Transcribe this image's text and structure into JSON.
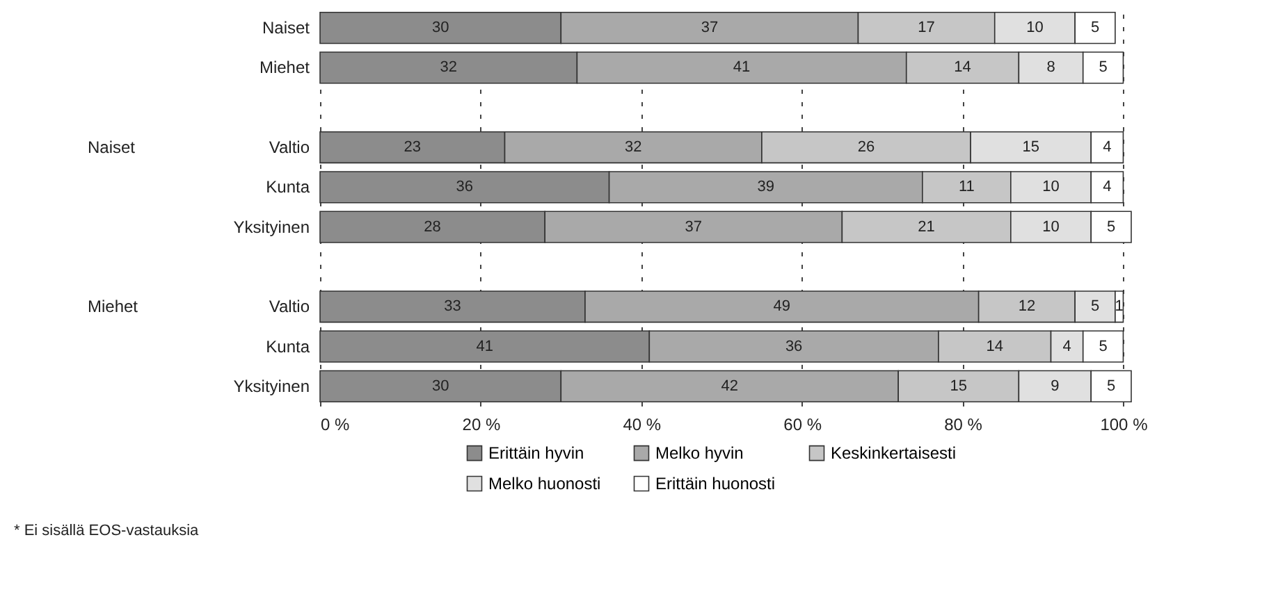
{
  "chart_data": {
    "type": "bar",
    "orientation": "horizontal",
    "stacked": true,
    "data_labels": true,
    "grid": "x",
    "legend": "bottom",
    "categories": [
      "Naiset",
      "Miehet",
      null,
      "Valtio",
      "Kunta",
      "Yksityinen",
      null,
      "Valtio",
      "Kunta",
      "Yksityinen"
    ],
    "series": [
      {
        "name": "Erittäin hyvin",
        "color": "#8c8c8c",
        "values": [
          30,
          32,
          null,
          23,
          36,
          28,
          null,
          33,
          41,
          30
        ]
      },
      {
        "name": "Melko hyvin",
        "color": "#a9a9a9",
        "values": [
          37,
          41,
          null,
          32,
          39,
          37,
          null,
          49,
          36,
          42
        ]
      },
      {
        "name": "Keskinkertaisesti",
        "color": "#c6c6c6",
        "values": [
          17,
          14,
          null,
          26,
          11,
          21,
          null,
          12,
          14,
          15
        ]
      },
      {
        "name": "Melko huonosti",
        "color": "#e0e0e0",
        "values": [
          10,
          8,
          null,
          15,
          10,
          10,
          null,
          5,
          4,
          9
        ]
      },
      {
        "name": "Erittäin huonosti",
        "color": "#ffffff",
        "values": [
          5,
          5,
          null,
          4,
          4,
          5,
          null,
          1,
          5,
          5
        ]
      }
    ],
    "xlim": [
      0,
      101
    ],
    "xticks": [
      {
        "value": 0,
        "label": "0 %"
      },
      {
        "value": 20,
        "label": "20 %"
      },
      {
        "value": 40,
        "label": "40 %"
      },
      {
        "value": 60,
        "label": "60 %"
      },
      {
        "value": 80,
        "label": "80 %"
      },
      {
        "value": 100,
        "label": "100 %"
      }
    ],
    "annotations": [
      "Naiset",
      "Miehet",
      "* Ei sisällä EOS-vastauksia"
    ]
  }
}
